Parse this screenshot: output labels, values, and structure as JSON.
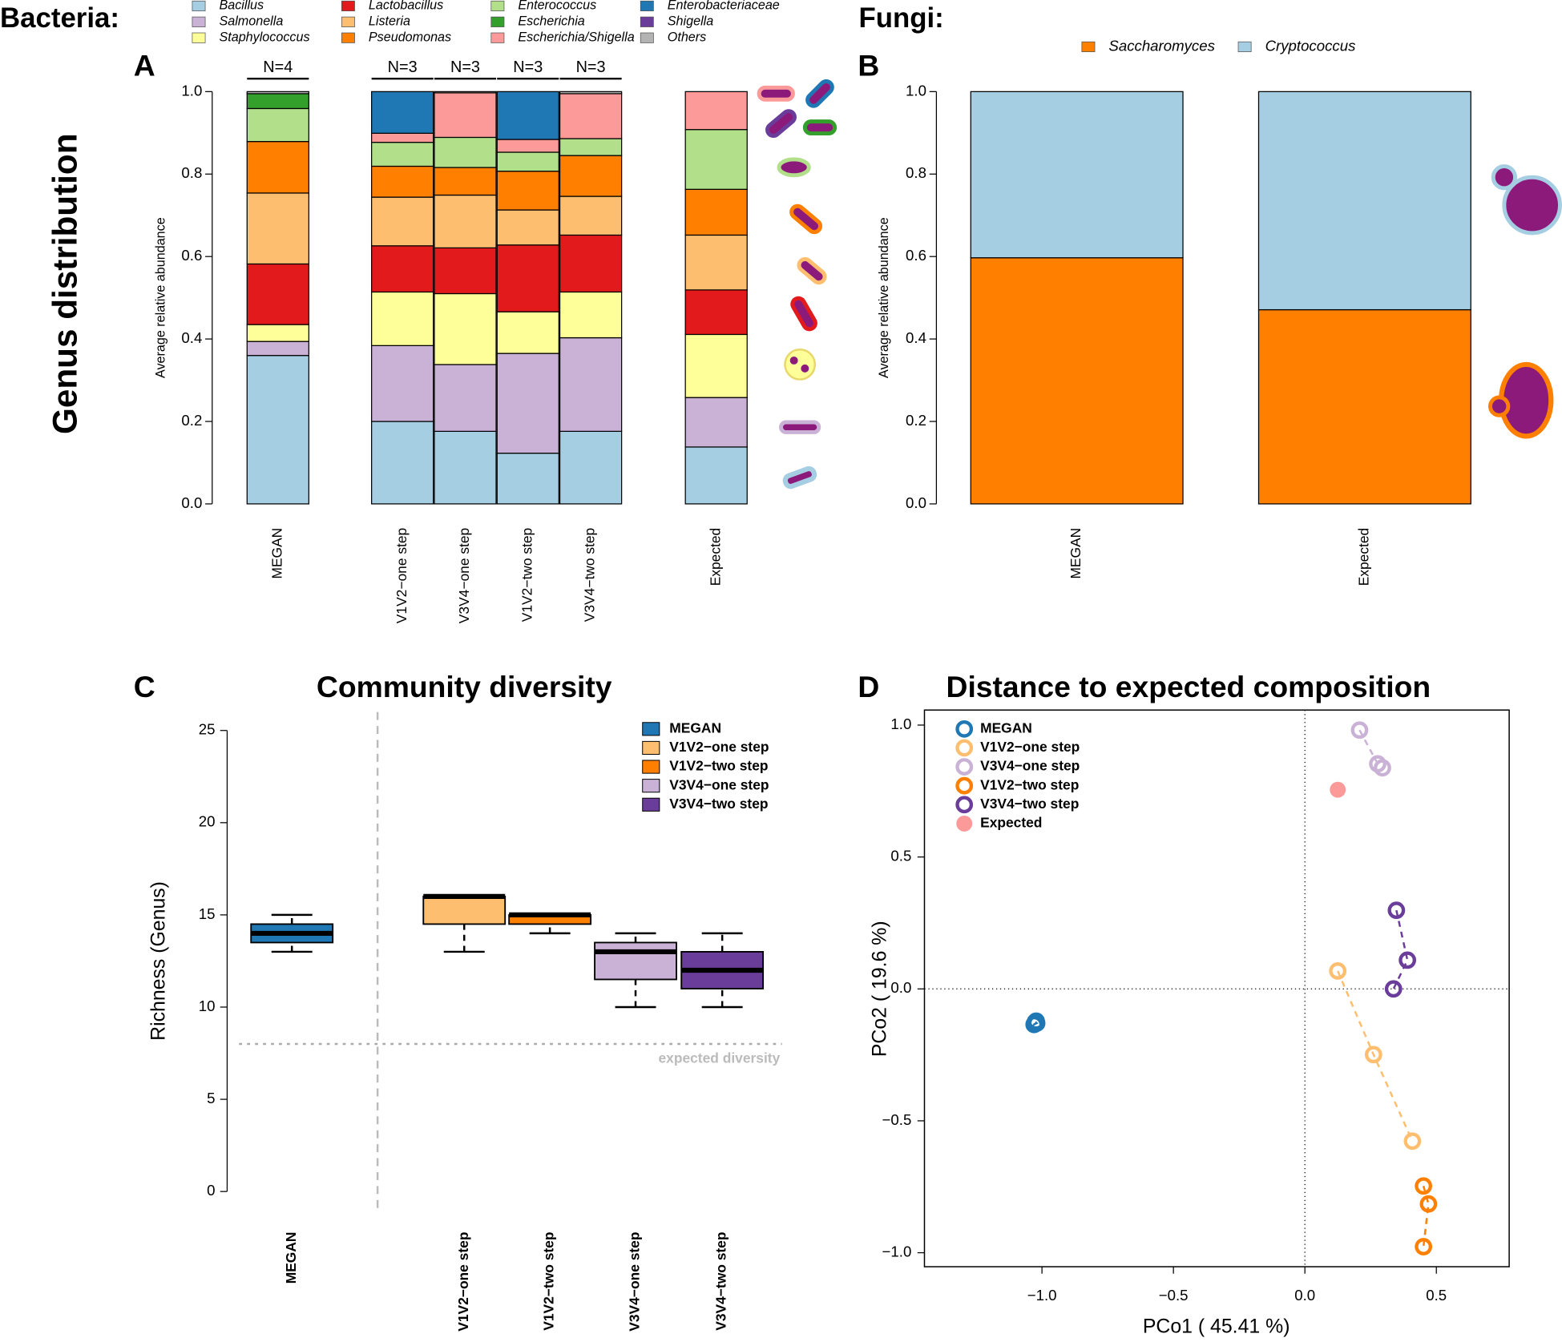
{
  "figure": {
    "bacteria_label": "Bacteria:",
    "fungi_label": "Fungi:",
    "row_label": "Genus distribution"
  },
  "chart_data": [
    {
      "type": "bar",
      "stacked": true,
      "panel": "A",
      "y_label": "Average relative abundance",
      "categories": [
        "MEGAN",
        "V1V2−one step",
        "V3V4−one step",
        "V1V2−two step",
        "V3V4−two step",
        "Expected"
      ],
      "group_labels": [
        "N=4",
        "N=3",
        "N=3",
        "N=3",
        "N=3",
        null
      ],
      "ylim": [
        0,
        1
      ],
      "yticks": [
        {
          "value": 0,
          "label": "0.0"
        },
        {
          "value": 0.2,
          "label": "0.2"
        },
        {
          "value": 0.4,
          "label": "0.4"
        },
        {
          "value": 0.6,
          "label": "0.6"
        },
        {
          "value": 0.8,
          "label": "0.8"
        },
        {
          "value": 1,
          "label": "1.0"
        }
      ],
      "series": [
        {
          "name": "Bacillus",
          "color": "#a6cee3",
          "values": [
            0.36,
            0.2,
            0.176,
            0.123,
            0.176,
            0.138
          ]
        },
        {
          "name": "Salmonella",
          "color": "#cab2d6",
          "values": [
            0.034,
            0.184,
            0.162,
            0.242,
            0.227,
            0.12
          ]
        },
        {
          "name": "Staphylococcus",
          "color": "#ffff99",
          "values": [
            0.041,
            0.13,
            0.172,
            0.101,
            0.111,
            0.153
          ]
        },
        {
          "name": "Lactobacillus",
          "color": "#e31a1c",
          "values": [
            0.147,
            0.112,
            0.111,
            0.162,
            0.138,
            0.108
          ]
        },
        {
          "name": "Listeria",
          "color": "#fdbf6f",
          "values": [
            0.172,
            0.118,
            0.128,
            0.085,
            0.094,
            0.133
          ]
        },
        {
          "name": "Pseudomonas",
          "color": "#ff7f00",
          "values": [
            0.125,
            0.075,
            0.067,
            0.094,
            0.099,
            0.111
          ]
        },
        {
          "name": "Enterococcus",
          "color": "#b2df8a",
          "values": [
            0.08,
            0.058,
            0.073,
            0.046,
            0.041,
            0.145
          ]
        },
        {
          "name": "Escherichia",
          "color": "#33a02c",
          "values": [
            0.036,
            0,
            0,
            0,
            0,
            0
          ]
        },
        {
          "name": "Escherichia/Shigella",
          "color": "#fb9a99",
          "values": [
            0,
            0.022,
            0.108,
            0.031,
            0.109,
            0.092
          ]
        },
        {
          "name": "Enterobacteriaceae",
          "color": "#1f78b4",
          "values": [
            0,
            0.101,
            0,
            0.116,
            0,
            0
          ]
        },
        {
          "name": "Shigella",
          "color": "#6a3d9a",
          "values": [
            0,
            0,
            0,
            0,
            0,
            0
          ]
        },
        {
          "name": "Others",
          "color": "#b3b3b3",
          "values": [
            0.005,
            0,
            0.003,
            0,
            0.005,
            0
          ]
        }
      ]
    },
    {
      "type": "bar",
      "stacked": true,
      "panel": "B",
      "y_label": "Average relative abundance",
      "categories": [
        "MEGAN",
        "Expected"
      ],
      "ylim": [
        0,
        1
      ],
      "yticks": [
        {
          "value": 0,
          "label": "0.0"
        },
        {
          "value": 0.2,
          "label": "0.2"
        },
        {
          "value": 0.4,
          "label": "0.4"
        },
        {
          "value": 0.6,
          "label": "0.6"
        },
        {
          "value": 0.8,
          "label": "0.8"
        },
        {
          "value": 1,
          "label": "1.0"
        }
      ],
      "series": [
        {
          "name": "Saccharomyces",
          "color": "#ff7f00",
          "values": [
            0.597,
            0.471
          ]
        },
        {
          "name": "Cryptococcus",
          "color": "#a6cee3",
          "values": [
            0.403,
            0.529
          ]
        }
      ]
    },
    {
      "type": "box",
      "panel": "C",
      "title": "Community diversity",
      "y_label": "Richness (Genus)",
      "categories": [
        "MEGAN",
        "V1V2−one step",
        "V1V2−two step",
        "V3V4−one step",
        "V3V4−two step"
      ],
      "ylim": [
        -1,
        26
      ],
      "yticks": [
        0,
        5,
        10,
        15,
        20,
        25
      ],
      "series": [
        {
          "name": "MEGAN",
          "color": "#1f78b4",
          "min": 13,
          "q1": 13.5,
          "median": 14,
          "q3": 14.5,
          "max": 15
        },
        {
          "name": "V1V2−one step",
          "color": "#fdbf6f",
          "min": 13,
          "q1": 14.5,
          "median": 16,
          "q3": 16,
          "max": 16
        },
        {
          "name": "V1V2−two step",
          "color": "#ff7f00",
          "min": 14,
          "q1": 14.5,
          "median": 15,
          "q3": 15,
          "max": 15
        },
        {
          "name": "V3V4−one step",
          "color": "#cab2d6",
          "min": 10,
          "q1": 11.5,
          "median": 13,
          "q3": 13.5,
          "max": 14
        },
        {
          "name": "V3V4−two step",
          "color": "#6a3d9a",
          "min": 10,
          "q1": 11,
          "median": 12,
          "q3": 13,
          "max": 14
        }
      ],
      "reference_line": {
        "value": 8,
        "label": "expected diversity"
      }
    },
    {
      "type": "scatter",
      "panel": "D",
      "title": "Distance to expected composition",
      "x_label": "PCo1 ( 45.41 %)",
      "y_label": "PCo2 ( 19.6 %)",
      "xlim": [
        -1.447,
        0.777
      ],
      "ylim": [
        -1.053,
        1.057
      ],
      "xticks": [
        {
          "value": -1,
          "label": "−1.0"
        },
        {
          "value": -0.5,
          "label": "−0.5"
        },
        {
          "value": 0,
          "label": "0.0"
        },
        {
          "value": 0.5,
          "label": "0.5"
        }
      ],
      "yticks": [
        {
          "value": -1,
          "label": "−1.0"
        },
        {
          "value": -0.5,
          "label": "−0.5"
        },
        {
          "value": 0,
          "label": "0.0"
        },
        {
          "value": 0.5,
          "label": "0.5"
        },
        {
          "value": 1,
          "label": "1.0"
        }
      ],
      "zero_lines": true,
      "connect_series": true,
      "series": [
        {
          "name": "MEGAN",
          "color": "#1f78b4",
          "marker": "open",
          "x": [
            -1.025,
            -1.02,
            -1.03,
            -1.022
          ],
          "y": [
            -0.125,
            -0.13,
            -0.135,
            -0.122
          ]
        },
        {
          "name": "V1V2−one step",
          "color": "#fdbf6f",
          "marker": "open",
          "x": [
            0.125,
            0.261,
            0.409
          ],
          "y": [
            0.068,
            -0.249,
            -0.577
          ]
        },
        {
          "name": "V3V4−one step",
          "color": "#cab2d6",
          "marker": "open",
          "x": [
            0.208,
            0.277,
            0.295
          ],
          "y": [
            0.981,
            0.853,
            0.838
          ]
        },
        {
          "name": "V1V2−two step",
          "color": "#ff7f00",
          "marker": "open",
          "x": [
            0.451,
            0.47,
            0.451
          ],
          "y": [
            -0.747,
            -0.815,
            -0.977
          ]
        },
        {
          "name": "V3V4−two step",
          "color": "#6a3d9a",
          "marker": "open",
          "x": [
            0.348,
            0.39,
            0.337
          ],
          "y": [
            0.298,
            0.109,
            0
          ]
        },
        {
          "name": "Expected",
          "color": "#fb9a99",
          "marker": "filled",
          "x": [
            0.125
          ],
          "y": [
            0.755
          ]
        }
      ]
    }
  ]
}
